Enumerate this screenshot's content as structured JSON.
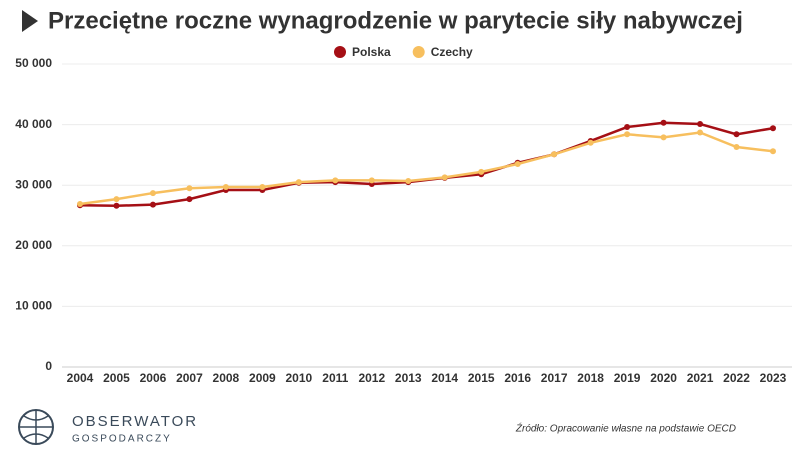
{
  "chart_data": {
    "type": "line",
    "title": "Przeciętne roczne wynagrodzenie w parytecie siły nabywczej",
    "source": "Źródło: Opracowanie własne na podstawie OECD",
    "categories": [
      "2004",
      "2005",
      "2006",
      "2007",
      "2008",
      "2009",
      "2010",
      "2011",
      "2012",
      "2013",
      "2014",
      "2015",
      "2016",
      "2017",
      "2018",
      "2019",
      "2020",
      "2021",
      "2022",
      "2023"
    ],
    "series": [
      {
        "name": "Polska",
        "color": "#a50f15",
        "values": [
          26700,
          26600,
          26800,
          27700,
          29200,
          29200,
          30400,
          30500,
          30200,
          30500,
          31200,
          31800,
          33700,
          35100,
          37300,
          39600,
          40300,
          40100,
          38400,
          39400
        ]
      },
      {
        "name": "Czechy",
        "color": "#f7bf5e",
        "values": [
          26900,
          27700,
          28700,
          29500,
          29700,
          29700,
          30500,
          30800,
          30800,
          30700,
          31300,
          32200,
          33500,
          35100,
          37000,
          38400,
          37900,
          38700,
          36300,
          35600
        ]
      }
    ],
    "ylim": [
      0,
      50000
    ],
    "yticks": [
      0,
      {
        "value": 10000,
        "label": "10 000"
      },
      {
        "value": 20000,
        "label": "20 000"
      },
      {
        "value": 30000,
        "label": "30 000"
      },
      {
        "value": 40000,
        "label": "40 000"
      },
      {
        "value": 50000,
        "label": "50 000"
      }
    ],
    "grid": true,
    "legend": "top"
  },
  "logo": {
    "name": "OBSERWATOR",
    "subtitle": "GOSPODARCZY"
  }
}
